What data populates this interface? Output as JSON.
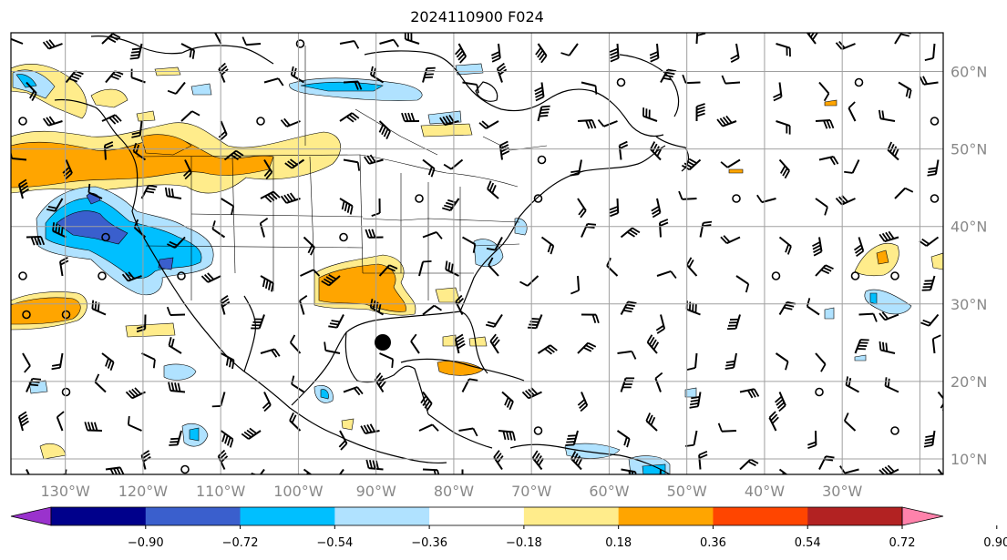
{
  "title": "2024110900 F024",
  "map": {
    "lon_labels": [
      "130°W",
      "120°W",
      "110°W",
      "100°W",
      "90°W",
      "80°W",
      "70°W",
      "60°W",
      "50°W",
      "40°W",
      "30°W"
    ],
    "lat_labels": [
      "60°N",
      "50°N",
      "40°N",
      "30°N",
      "20°N",
      "10°N"
    ],
    "lon_range": [
      -137,
      -17
    ],
    "lat_range": [
      8,
      65
    ],
    "lon_grid_step": 10,
    "lat_grid_step": 10,
    "grid": true,
    "storm_marker": {
      "lon": -91,
      "lat": 25,
      "color": "#000000"
    }
  },
  "colorbar": {
    "colors": [
      "#9a32cd",
      "#00008b",
      "#3a5fcd",
      "#00bfff",
      "#b0e2ff",
      "#ffffff",
      "#ffec8b",
      "#ffa500",
      "#ff4500",
      "#b22222",
      "#ff82ab"
    ],
    "tick_labels": [
      "−0.90",
      "−0.72",
      "−0.54",
      "−0.36",
      "−0.18",
      "0.18",
      "0.36",
      "0.54",
      "0.72",
      "0.90"
    ],
    "extend": "both",
    "placement": "bottom"
  },
  "shading_legend": {
    "negative_light": "#b0e2ff",
    "negative_mid": "#00bfff",
    "negative_strong": "#3a5fcd",
    "positive_light": "#ffec8b",
    "positive_mid": "#ffa500"
  }
}
